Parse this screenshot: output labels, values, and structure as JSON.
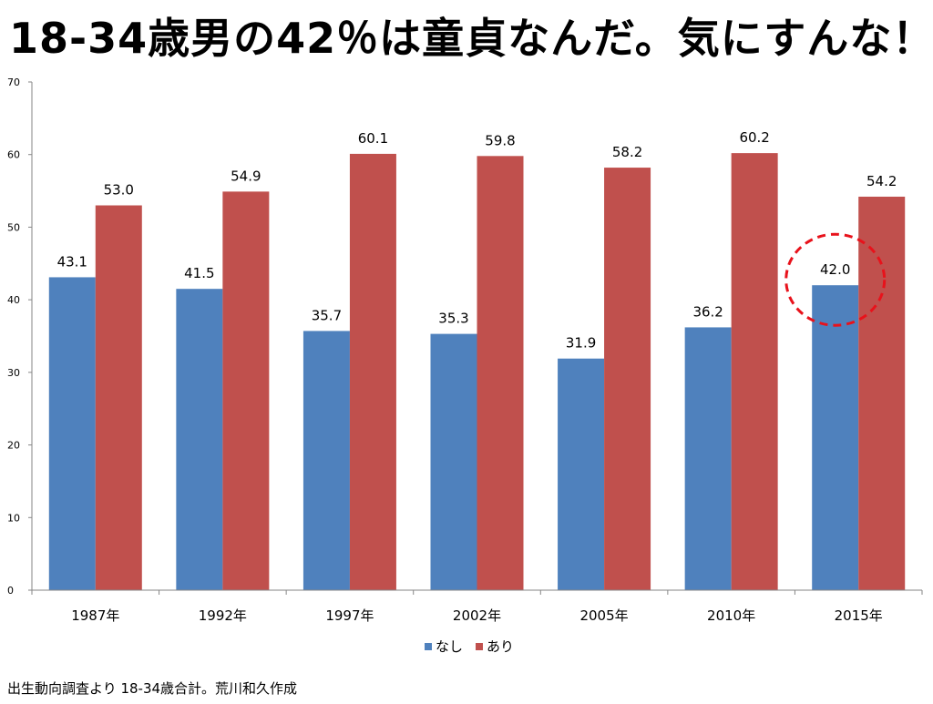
{
  "title": "18-34歳男の42％は童貞なんだ。気にすんな！",
  "source_note": "出生動向調査より 18-34歳合計。荒川和久作成",
  "colors": {
    "series_none": "#4F81BD",
    "series_exp": "#C0504D",
    "highlight_circle": "#E8121B",
    "axis": "#868686"
  },
  "chart_data": {
    "type": "bar",
    "title": "18-34歳男の42％は童貞なんだ。気にすんな！",
    "categories": [
      "1987年",
      "1992年",
      "1997年",
      "2002年",
      "2005年",
      "2010年",
      "2015年"
    ],
    "series": [
      {
        "name": "なし",
        "values": [
          43.1,
          41.5,
          35.7,
          35.3,
          31.9,
          36.2,
          42.0
        ]
      },
      {
        "name": "あり",
        "values": [
          53.0,
          54.9,
          60.1,
          59.8,
          58.2,
          60.2,
          54.2
        ]
      }
    ],
    "value_labels": [
      [
        "43.1",
        "41.5",
        "35.7",
        "35.3",
        "31.9",
        "36.2",
        "42.0"
      ],
      [
        "53.0",
        "54.9",
        "60.1",
        "59.8",
        "58.2",
        "60.2",
        "54.2"
      ]
    ],
    "y_ticks": [
      "0",
      "10",
      "20",
      "30",
      "40",
      "50",
      "60",
      "70"
    ],
    "ylim": [
      0,
      70
    ],
    "xlabel": "",
    "ylabel": "",
    "grid": false,
    "legend_position": "bottom",
    "highlight": {
      "series": "なし",
      "category": "2015年"
    }
  }
}
